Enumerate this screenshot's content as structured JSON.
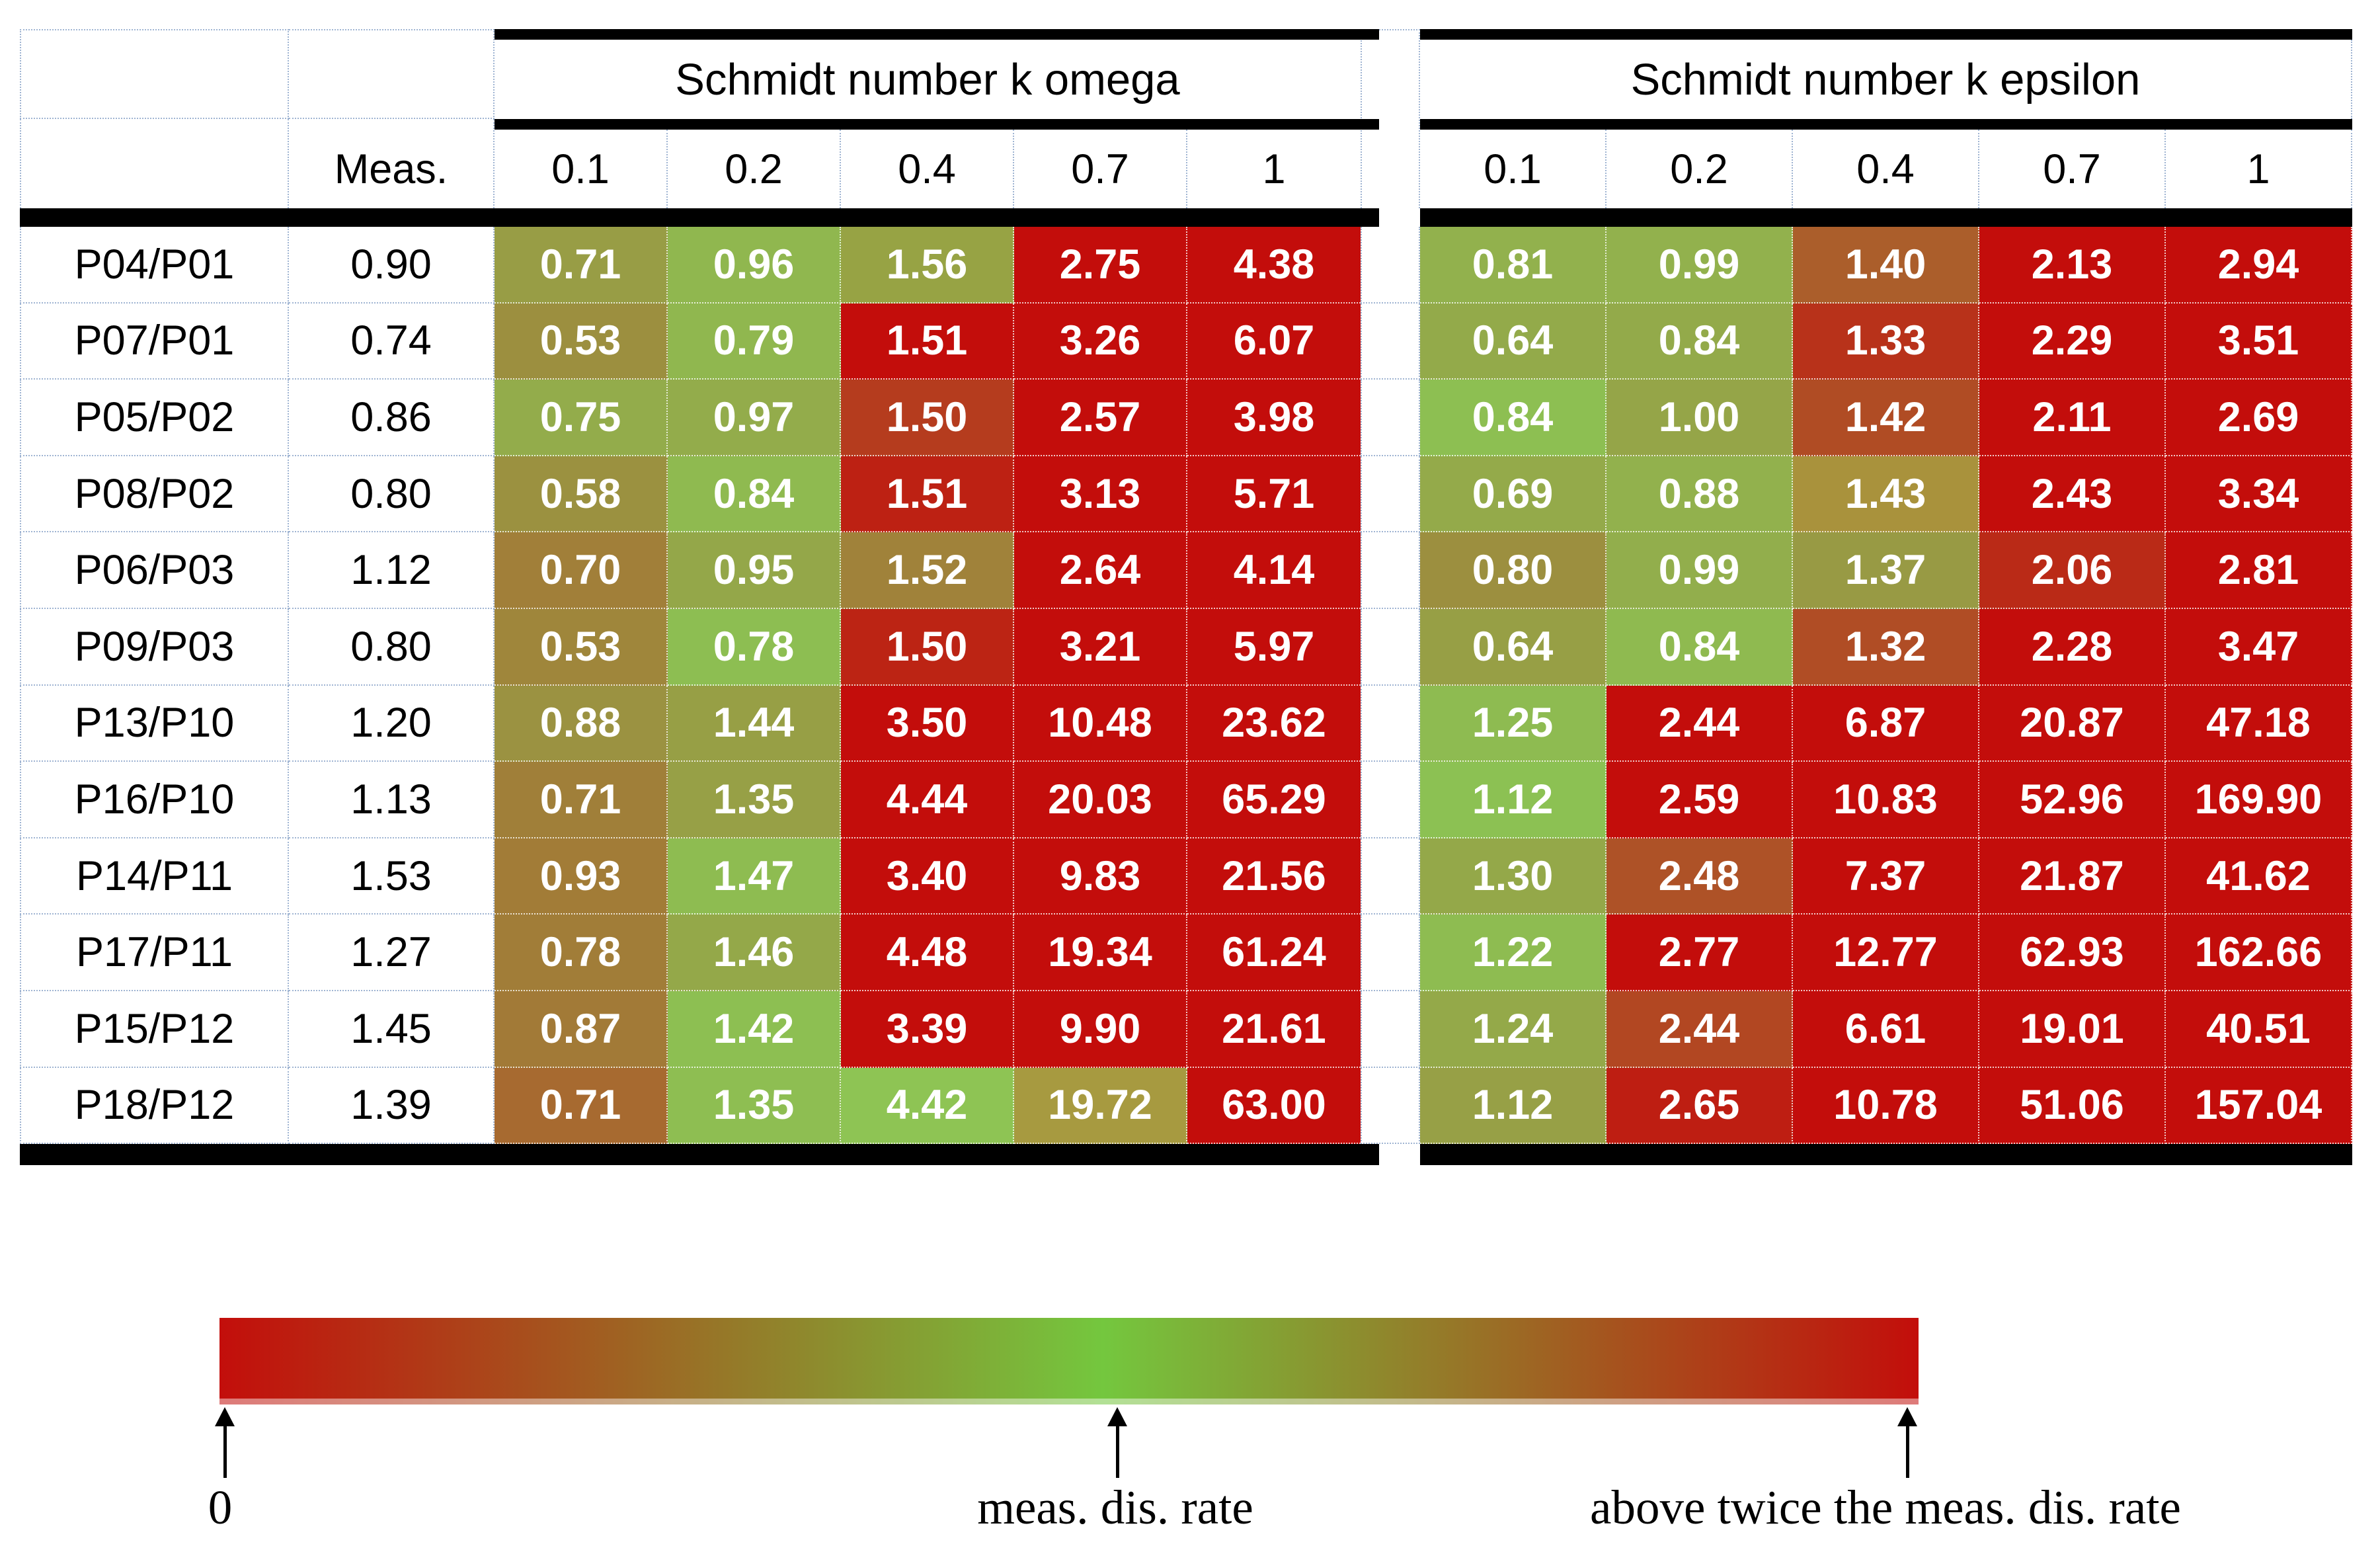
{
  "chart_data": {
    "type": "heatmap",
    "meas_header": "Meas.",
    "column_groups": [
      "Schmidt number k omega",
      "Schmidt number k epsilon"
    ],
    "schmidt_numbers": [
      "0.1",
      "0.2",
      "0.4",
      "0.7",
      "1"
    ],
    "rows": [
      {
        "label": "P04/P01",
        "meas": "0.90",
        "k_omega": [
          "0.71",
          "0.96",
          "1.56",
          "2.75",
          "4.38"
        ],
        "k_epsilon": [
          "0.81",
          "0.99",
          "1.40",
          "2.13",
          "2.94"
        ]
      },
      {
        "label": "P07/P01",
        "meas": "0.74",
        "k_omega": [
          "0.53",
          "0.79",
          "1.51",
          "3.26",
          "6.07"
        ],
        "k_epsilon": [
          "0.64",
          "0.84",
          "1.33",
          "2.29",
          "3.51"
        ]
      },
      {
        "label": "P05/P02",
        "meas": "0.86",
        "k_omega": [
          "0.75",
          "0.97",
          "1.50",
          "2.57",
          "3.98"
        ],
        "k_epsilon": [
          "0.84",
          "1.00",
          "1.42",
          "2.11",
          "2.69"
        ]
      },
      {
        "label": "P08/P02",
        "meas": "0.80",
        "k_omega": [
          "0.58",
          "0.84",
          "1.51",
          "3.13",
          "5.71"
        ],
        "k_epsilon": [
          "0.69",
          "0.88",
          "1.43",
          "2.43",
          "3.34"
        ]
      },
      {
        "label": "P06/P03",
        "meas": "1.12",
        "k_omega": [
          "0.70",
          "0.95",
          "1.52",
          "2.64",
          "4.14"
        ],
        "k_epsilon": [
          "0.80",
          "0.99",
          "1.37",
          "2.06",
          "2.81"
        ]
      },
      {
        "label": "P09/P03",
        "meas": "0.80",
        "k_omega": [
          "0.53",
          "0.78",
          "1.50",
          "3.21",
          "5.97"
        ],
        "k_epsilon": [
          "0.64",
          "0.84",
          "1.32",
          "2.28",
          "3.47"
        ]
      },
      {
        "label": "P13/P10",
        "meas": "1.20",
        "k_omega": [
          "0.88",
          "1.44",
          "3.50",
          "10.48",
          "23.62"
        ],
        "k_epsilon": [
          "1.25",
          "2.44",
          "6.87",
          "20.87",
          "47.18"
        ]
      },
      {
        "label": "P16/P10",
        "meas": "1.13",
        "k_omega": [
          "0.71",
          "1.35",
          "4.44",
          "20.03",
          "65.29"
        ],
        "k_epsilon": [
          "1.12",
          "2.59",
          "10.83",
          "52.96",
          "169.90"
        ]
      },
      {
        "label": "P14/P11",
        "meas": "1.53",
        "k_omega": [
          "0.93",
          "1.47",
          "3.40",
          "9.83",
          "21.56"
        ],
        "k_epsilon": [
          "1.30",
          "2.48",
          "7.37",
          "21.87",
          "41.62"
        ]
      },
      {
        "label": "P17/P11",
        "meas": "1.27",
        "k_omega": [
          "0.78",
          "1.46",
          "4.48",
          "19.34",
          "61.24"
        ],
        "k_epsilon": [
          "1.22",
          "2.77",
          "12.77",
          "62.93",
          "162.66"
        ]
      },
      {
        "label": "P15/P12",
        "meas": "1.45",
        "k_omega": [
          "0.87",
          "1.42",
          "3.39",
          "9.90",
          "21.61"
        ],
        "k_epsilon": [
          "1.24",
          "2.44",
          "6.61",
          "19.01",
          "40.51"
        ]
      },
      {
        "label": "P18/P12",
        "meas": "1.39",
        "k_omega": [
          "0.71",
          "1.35",
          "4.42",
          "19.72",
          "63.00"
        ],
        "k_epsilon": [
          "1.12",
          "2.65",
          "10.78",
          "51.06",
          "157.04"
        ]
      }
    ],
    "color_scale": {
      "at_zero": "#C30D0B",
      "at_meas_rate": "#8CC354",
      "at_twice_meas_rate": "#C30D0B",
      "cell_red": "#C30D0B",
      "cell_green": "#8CC354"
    },
    "color_overrides": [
      {
        "group": "k_omega",
        "row": 0,
        "col": 2,
        "color": "#97A344"
      },
      {
        "group": "k_omega",
        "row": 11,
        "col": 2,
        "color": "#8EC454"
      },
      {
        "group": "k_omega",
        "row": 11,
        "col": 3,
        "color": "#A79A40"
      },
      {
        "group": "k_epsilon",
        "row": 3,
        "col": 2,
        "color": "#A9923C"
      }
    ]
  },
  "legend": {
    "left_label": "0",
    "mid_label": "meas. dis. rate",
    "right_label": "above twice the meas. dis. rate"
  }
}
